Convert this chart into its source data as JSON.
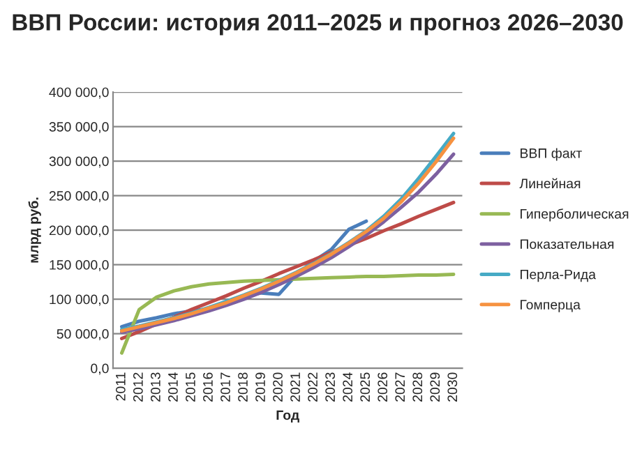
{
  "chart_data": {
    "type": "line",
    "title": "ВВП России: история 2011–2025 и прогноз 2026–2030",
    "xlabel": "Год",
    "ylabel": "млрд руб.",
    "categories": [
      "2011",
      "2012",
      "2013",
      "2014",
      "2015",
      "2016",
      "2017",
      "2018",
      "2019",
      "2020",
      "2021",
      "2022",
      "2023",
      "2024",
      "2025",
      "2026",
      "2027",
      "2028",
      "2029",
      "2030"
    ],
    "ylim": [
      0,
      400000
    ],
    "yticks": [
      {
        "value": 0,
        "label": "0,0"
      },
      {
        "value": 50000,
        "label": "50 000,0"
      },
      {
        "value": 100000,
        "label": "100 000,0"
      },
      {
        "value": 150000,
        "label": "150 000,0"
      },
      {
        "value": 200000,
        "label": "200 000,0"
      },
      {
        "value": 250000,
        "label": "250 000,0"
      },
      {
        "value": 300000,
        "label": "300 000,0"
      },
      {
        "value": 350000,
        "label": "350 000,0"
      },
      {
        "value": 400000,
        "label": "400 000,0"
      }
    ],
    "grid": "y",
    "legend": "right",
    "marker": "none",
    "line_style": "solid",
    "series": [
      {
        "name": "ВВП факт",
        "color": "#4a7ebb",
        "values": [
          60000,
          68000,
          73000,
          79000,
          83000,
          86000,
          92000,
          104000,
          109000,
          107000,
          135000,
          155000,
          172000,
          201000,
          213000,
          null,
          null,
          null,
          null,
          null
        ]
      },
      {
        "name": "Линейная",
        "color": "#be4b48",
        "values": [
          43000,
          53000,
          64000,
          74000,
          85000,
          95000,
          105000,
          116000,
          126000,
          137000,
          147000,
          157000,
          168000,
          178000,
          188000,
          199000,
          209000,
          220000,
          230000,
          240000
        ]
      },
      {
        "name": "Гиперболическая",
        "color": "#98b954",
        "values": [
          22000,
          85000,
          103000,
          112000,
          118000,
          122000,
          124000,
          126000,
          127000,
          128000,
          129000,
          130000,
          131000,
          132000,
          133000,
          133000,
          134000,
          135000,
          135000,
          136000
        ]
      },
      {
        "name": "Показательная",
        "color": "#7d60a0",
        "values": [
          52000,
          57000,
          63000,
          69000,
          76000,
          83000,
          91000,
          100000,
          110000,
          121000,
          133000,
          146000,
          160000,
          176000,
          193000,
          212000,
          233000,
          255000,
          281000,
          310000
        ]
      },
      {
        "name": "Перла-Рида",
        "color": "#46aac5",
        "values": [
          56000,
          61000,
          67000,
          73000,
          80000,
          88000,
          97000,
          106000,
          116000,
          127000,
          139000,
          152000,
          166000,
          182000,
          199000,
          220000,
          245000,
          275000,
          307000,
          340000
        ]
      },
      {
        "name": "Гомперца",
        "color": "#f69240",
        "values": [
          54000,
          60000,
          66000,
          72000,
          79000,
          87000,
          95000,
          105000,
          115000,
          126000,
          138000,
          151000,
          165000,
          181000,
          198000,
          217000,
          241000,
          268000,
          299000,
          333000
        ]
      }
    ]
  }
}
